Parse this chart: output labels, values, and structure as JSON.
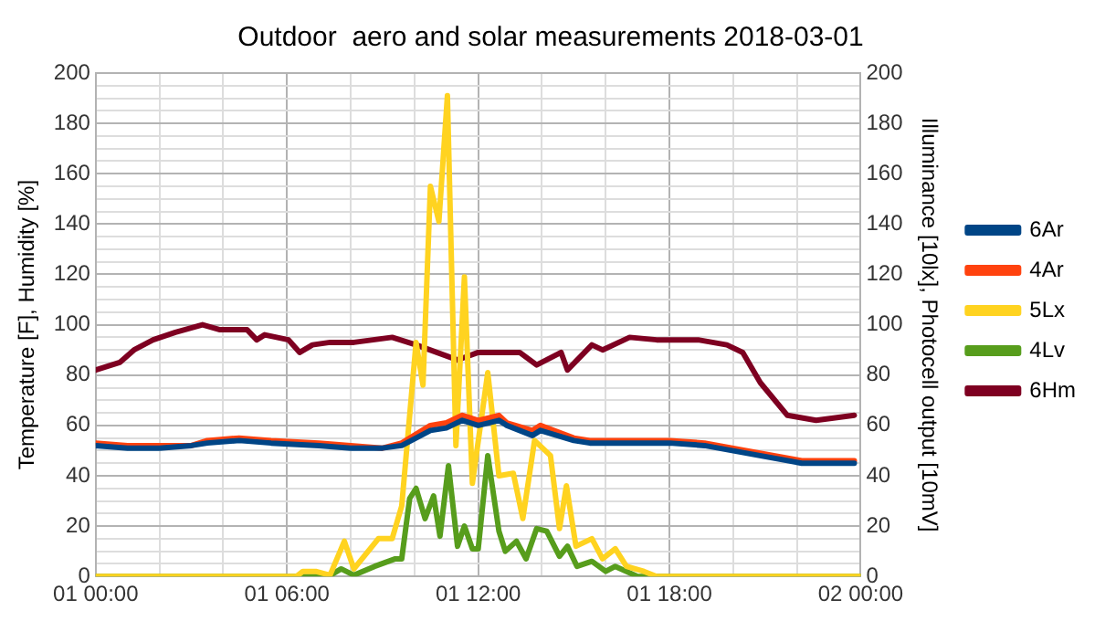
{
  "chart_data": {
    "type": "line",
    "title": "Outdoor  aero and solar measurements 2018-03-01",
    "ylabel": "Temperature [F], Humidity [%]",
    "y2label": "Illuminance [10lx], Photocell output [10mV]",
    "xlim": [
      "2018-03-01T00:00",
      "2018-03-02T00:00"
    ],
    "xticks": [
      {
        "value": "2018-03-01T00:00",
        "label": "01 00:00"
      },
      {
        "value": "2018-03-01T02:00",
        "label": null
      },
      {
        "value": "2018-03-01T04:00",
        "label": null
      },
      {
        "value": "2018-03-01T06:00",
        "label": "01 06:00"
      },
      {
        "value": "2018-03-01T08:00",
        "label": null
      },
      {
        "value": "2018-03-01T10:00",
        "label": null
      },
      {
        "value": "2018-03-01T12:00",
        "label": "01 12:00"
      },
      {
        "value": "2018-03-01T14:00",
        "label": null
      },
      {
        "value": "2018-03-01T16:00",
        "label": null
      },
      {
        "value": "2018-03-01T18:00",
        "label": "01 18:00"
      },
      {
        "value": "2018-03-01T20:00",
        "label": null
      },
      {
        "value": "2018-03-01T22:00",
        "label": null
      },
      {
        "value": "2018-03-02T00:00",
        "label": "02 00:00"
      }
    ],
    "ylim": [
      0,
      200
    ],
    "yticks": [
      0,
      {
        "value": 5,
        "label": null
      },
      {
        "value": 10,
        "label": null
      },
      {
        "value": 15,
        "label": null
      },
      20,
      {
        "value": 25,
        "label": null
      },
      {
        "value": 30,
        "label": null
      },
      {
        "value": 35,
        "label": null
      },
      40,
      {
        "value": 45,
        "label": null
      },
      {
        "value": 50,
        "label": null
      },
      {
        "value": 55,
        "label": null
      },
      60,
      {
        "value": 65,
        "label": null
      },
      {
        "value": 70,
        "label": null
      },
      {
        "value": 75,
        "label": null
      },
      80,
      {
        "value": 85,
        "label": null
      },
      {
        "value": 90,
        "label": null
      },
      {
        "value": 95,
        "label": null
      },
      100,
      {
        "value": 105,
        "label": null
      },
      {
        "value": 110,
        "label": null
      },
      {
        "value": 115,
        "label": null
      },
      120,
      {
        "value": 125,
        "label": null
      },
      {
        "value": 130,
        "label": null
      },
      {
        "value": 135,
        "label": null
      },
      140,
      {
        "value": 145,
        "label": null
      },
      {
        "value": 150,
        "label": null
      },
      {
        "value": 155,
        "label": null
      },
      160,
      {
        "value": 165,
        "label": null
      },
      {
        "value": 170,
        "label": null
      },
      {
        "value": 175,
        "label": null
      },
      180,
      {
        "value": 185,
        "label": null
      },
      {
        "value": 190,
        "label": null
      },
      {
        "value": 195,
        "label": null
      },
      200
    ],
    "y2lim": [
      0,
      200
    ],
    "y2ticks": [
      0,
      20,
      40,
      60,
      80,
      100,
      120,
      140,
      160,
      180,
      200
    ],
    "grid": true,
    "legend": "right",
    "marker": "none",
    "line_style": "solid",
    "series": [
      {
        "name": "6Ar",
        "color": "#004586",
        "x": [
          "2018-03-01T00:00",
          "2018-03-01T01:00",
          "2018-03-01T02:00",
          "2018-03-01T03:00",
          "2018-03-01T03:30",
          "2018-03-01T04:30",
          "2018-03-01T05:30",
          "2018-03-01T07:00",
          "2018-03-01T08:00",
          "2018-03-01T09:00",
          "2018-03-01T09:36",
          "2018-03-01T10:30",
          "2018-03-01T11:00",
          "2018-03-01T11:30",
          "2018-03-01T12:00",
          "2018-03-01T12:39",
          "2018-03-01T12:54",
          "2018-03-01T13:42",
          "2018-03-01T13:57",
          "2018-03-01T15:00",
          "2018-03-01T15:30",
          "2018-03-01T18:00",
          "2018-03-01T19:06",
          "2018-03-01T20:24",
          "2018-03-01T22:09",
          "2018-03-01T23:48"
        ],
        "values": [
          52,
          51,
          51,
          52,
          53,
          54,
          53,
          52,
          51,
          51,
          52,
          58,
          59,
          62,
          60,
          62,
          60,
          56,
          58,
          54,
          53,
          53,
          52,
          49,
          45,
          45
        ]
      },
      {
        "name": "4Ar",
        "color": "#ff420e",
        "x": [
          "2018-03-01T00:00",
          "2018-03-01T01:00",
          "2018-03-01T02:00",
          "2018-03-01T03:00",
          "2018-03-01T03:30",
          "2018-03-01T04:30",
          "2018-03-01T05:30",
          "2018-03-01T07:00",
          "2018-03-01T08:00",
          "2018-03-01T09:00",
          "2018-03-01T09:36",
          "2018-03-01T10:30",
          "2018-03-01T11:00",
          "2018-03-01T11:30",
          "2018-03-01T12:00",
          "2018-03-01T12:39",
          "2018-03-01T12:54",
          "2018-03-01T13:42",
          "2018-03-01T13:57",
          "2018-03-01T15:00",
          "2018-03-01T15:30",
          "2018-03-01T18:00",
          "2018-03-01T19:06",
          "2018-03-01T20:24",
          "2018-03-01T22:09",
          "2018-03-01T23:48"
        ],
        "values": [
          53,
          52,
          52,
          52,
          54,
          55,
          54,
          53,
          52,
          51,
          53,
          60,
          61,
          64,
          62,
          64,
          61,
          58,
          60,
          55,
          54,
          54,
          53,
          50,
          46,
          46
        ]
      },
      {
        "name": "5Lx",
        "color": "#ffd320",
        "x": [
          "2018-03-01T00:00",
          "2018-03-01T06:18",
          "2018-03-01T06:30",
          "2018-03-01T06:54",
          "2018-03-01T07:21",
          "2018-03-01T07:48",
          "2018-03-01T08:06",
          "2018-03-01T08:52",
          "2018-03-01T09:18",
          "2018-03-01T09:36",
          "2018-03-01T10:03",
          "2018-03-01T10:16",
          "2018-03-01T10:30",
          "2018-03-01T10:46",
          "2018-03-01T11:02",
          "2018-03-01T11:18",
          "2018-03-01T11:34",
          "2018-03-01T11:49",
          "2018-03-01T12:18",
          "2018-03-01T12:39",
          "2018-03-01T13:06",
          "2018-03-01T13:24",
          "2018-03-01T13:46",
          "2018-03-01T14:16",
          "2018-03-01T14:33",
          "2018-03-01T14:46",
          "2018-03-01T15:04",
          "2018-03-01T15:34",
          "2018-03-01T15:54",
          "2018-03-01T16:18",
          "2018-03-01T16:39",
          "2018-03-01T17:12",
          "2018-03-01T17:36",
          "2018-03-02T00:00"
        ],
        "values": [
          0,
          0,
          2,
          2,
          0.5,
          14,
          3,
          15,
          15,
          28,
          93,
          76,
          155,
          141,
          191,
          52,
          119,
          37,
          81,
          40,
          41,
          23,
          54,
          48,
          19,
          36,
          12,
          15,
          7,
          11,
          4,
          2,
          0,
          0
        ]
      },
      {
        "name": "4Lv",
        "color": "#579d1c",
        "x": [
          "2018-03-01T00:00",
          "2018-03-01T07:18",
          "2018-03-01T07:42",
          "2018-03-01T08:06",
          "2018-03-01T08:45",
          "2018-03-01T09:24",
          "2018-03-01T09:36",
          "2018-03-01T09:51",
          "2018-03-01T10:03",
          "2018-03-01T10:20",
          "2018-03-01T10:36",
          "2018-03-01T10:48",
          "2018-03-01T11:04",
          "2018-03-01T11:21",
          "2018-03-01T11:34",
          "2018-03-01T11:49",
          "2018-03-01T12:00",
          "2018-03-01T12:18",
          "2018-03-01T12:39",
          "2018-03-01T12:51",
          "2018-03-01T13:12",
          "2018-03-01T13:30",
          "2018-03-01T13:50",
          "2018-03-01T14:09",
          "2018-03-01T14:33",
          "2018-03-01T14:48",
          "2018-03-01T15:06",
          "2018-03-01T15:34",
          "2018-03-01T16:00",
          "2018-03-01T16:18",
          "2018-03-01T17:00",
          "2018-03-02T00:00"
        ],
        "values": [
          0,
          0,
          3,
          0.5,
          4,
          7,
          7,
          31,
          35,
          23,
          32,
          16,
          44,
          12,
          20,
          11,
          11,
          48,
          18,
          10,
          14,
          7,
          19,
          18,
          8,
          12,
          4,
          6,
          2,
          4,
          0,
          0
        ]
      },
      {
        "name": "6Hm",
        "color": "#7e0021",
        "x": [
          "2018-03-01T00:00",
          "2018-03-01T00:45",
          "2018-03-01T01:12",
          "2018-03-01T01:48",
          "2018-03-01T02:30",
          "2018-03-01T03:21",
          "2018-03-01T03:54",
          "2018-03-01T04:45",
          "2018-03-01T05:03",
          "2018-03-01T05:18",
          "2018-03-01T06:03",
          "2018-03-01T06:24",
          "2018-03-01T06:48",
          "2018-03-01T07:21",
          "2018-03-01T08:06",
          "2018-03-01T09:18",
          "2018-03-01T10:03",
          "2018-03-01T11:21",
          "2018-03-01T12:00",
          "2018-03-01T13:18",
          "2018-03-01T13:50",
          "2018-03-01T14:36",
          "2018-03-01T14:48",
          "2018-03-01T15:34",
          "2018-03-01T15:54",
          "2018-03-01T16:45",
          "2018-03-01T17:36",
          "2018-03-01T18:54",
          "2018-03-01T19:48",
          "2018-03-01T20:18",
          "2018-03-01T20:51",
          "2018-03-01T21:42",
          "2018-03-01T22:36",
          "2018-03-01T23:48"
        ],
        "values": [
          82,
          85,
          90,
          94,
          97,
          100,
          98,
          98,
          94,
          96,
          94,
          89,
          92,
          93,
          93,
          95,
          92,
          86,
          89,
          89,
          84,
          89,
          82,
          92,
          90,
          95,
          94,
          94,
          92,
          89,
          77,
          64,
          62,
          64
        ]
      }
    ]
  }
}
